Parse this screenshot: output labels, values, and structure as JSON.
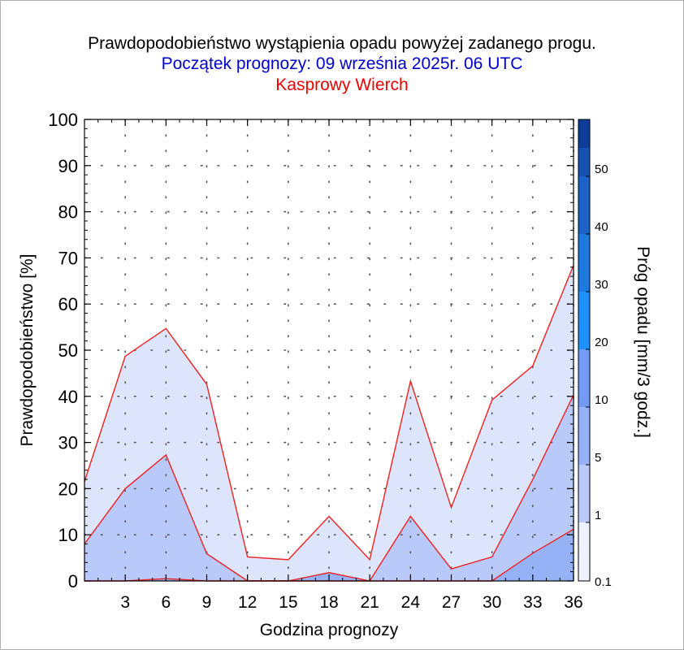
{
  "header": {
    "title": "Prawdopodobieństwo wystąpienia opadu powyżej zadanego progu.",
    "subtitle": "Początek prognozy: 09 września 2025r. 06 UTC",
    "location": "Kasprowy Wierch"
  },
  "colors": {
    "title": "#000000",
    "subtitle": "#0000cc",
    "location": "#ee0000",
    "series_line": "#ee2222",
    "fill_0.1": "#dde5fd",
    "fill_1": "#b8c9fa",
    "fill_5": "#95b2f7",
    "colorbar": [
      "#eef2fe",
      "#dde5fd",
      "#b8c9fa",
      "#95b2f7",
      "#729cf3",
      "#4a86ef",
      "#1e90ff",
      "#1f78df",
      "#1c63c8",
      "#1650b0",
      "#0d3d99"
    ]
  },
  "chart_data": {
    "type": "area",
    "xlabel": "Godzina prognozy",
    "ylabel": "Prawdopodobieństwo [%]",
    "xlim": [
      0,
      36
    ],
    "ylim": [
      0,
      100
    ],
    "x": [
      0,
      3,
      6,
      9,
      12,
      15,
      18,
      21,
      24,
      27,
      30,
      33,
      36
    ],
    "x_ticks": [
      "3",
      "6",
      "9",
      "12",
      "15",
      "18",
      "21",
      "24",
      "27",
      "30",
      "33",
      "36"
    ],
    "y_ticks": [
      "0",
      "10",
      "20",
      "30",
      "40",
      "50",
      "60",
      "70",
      "80",
      "90",
      "100"
    ],
    "series": [
      {
        "name": "0.1",
        "values": [
          21.5,
          48.7,
          54.7,
          42.6,
          5.2,
          4.6,
          14.0,
          4.6,
          43.3,
          15.9,
          39.2,
          46.6,
          68.4
        ]
      },
      {
        "name": "1",
        "values": [
          8.0,
          20.0,
          27.3,
          5.9,
          0,
          0,
          0,
          0,
          14.0,
          2.6,
          5.2,
          22.0,
          40.3
        ]
      },
      {
        "name": "5",
        "values": [
          0,
          0,
          0.5,
          0,
          0,
          0,
          1.8,
          0,
          0,
          0,
          0,
          6.0,
          11.2
        ]
      }
    ],
    "colorbar": {
      "label": "Próg opadu [mm/3 godz.]",
      "ticks": [
        "0.1",
        "1",
        "5",
        "10",
        "20",
        "30",
        "40",
        "50"
      ]
    },
    "grid": "dotted"
  }
}
